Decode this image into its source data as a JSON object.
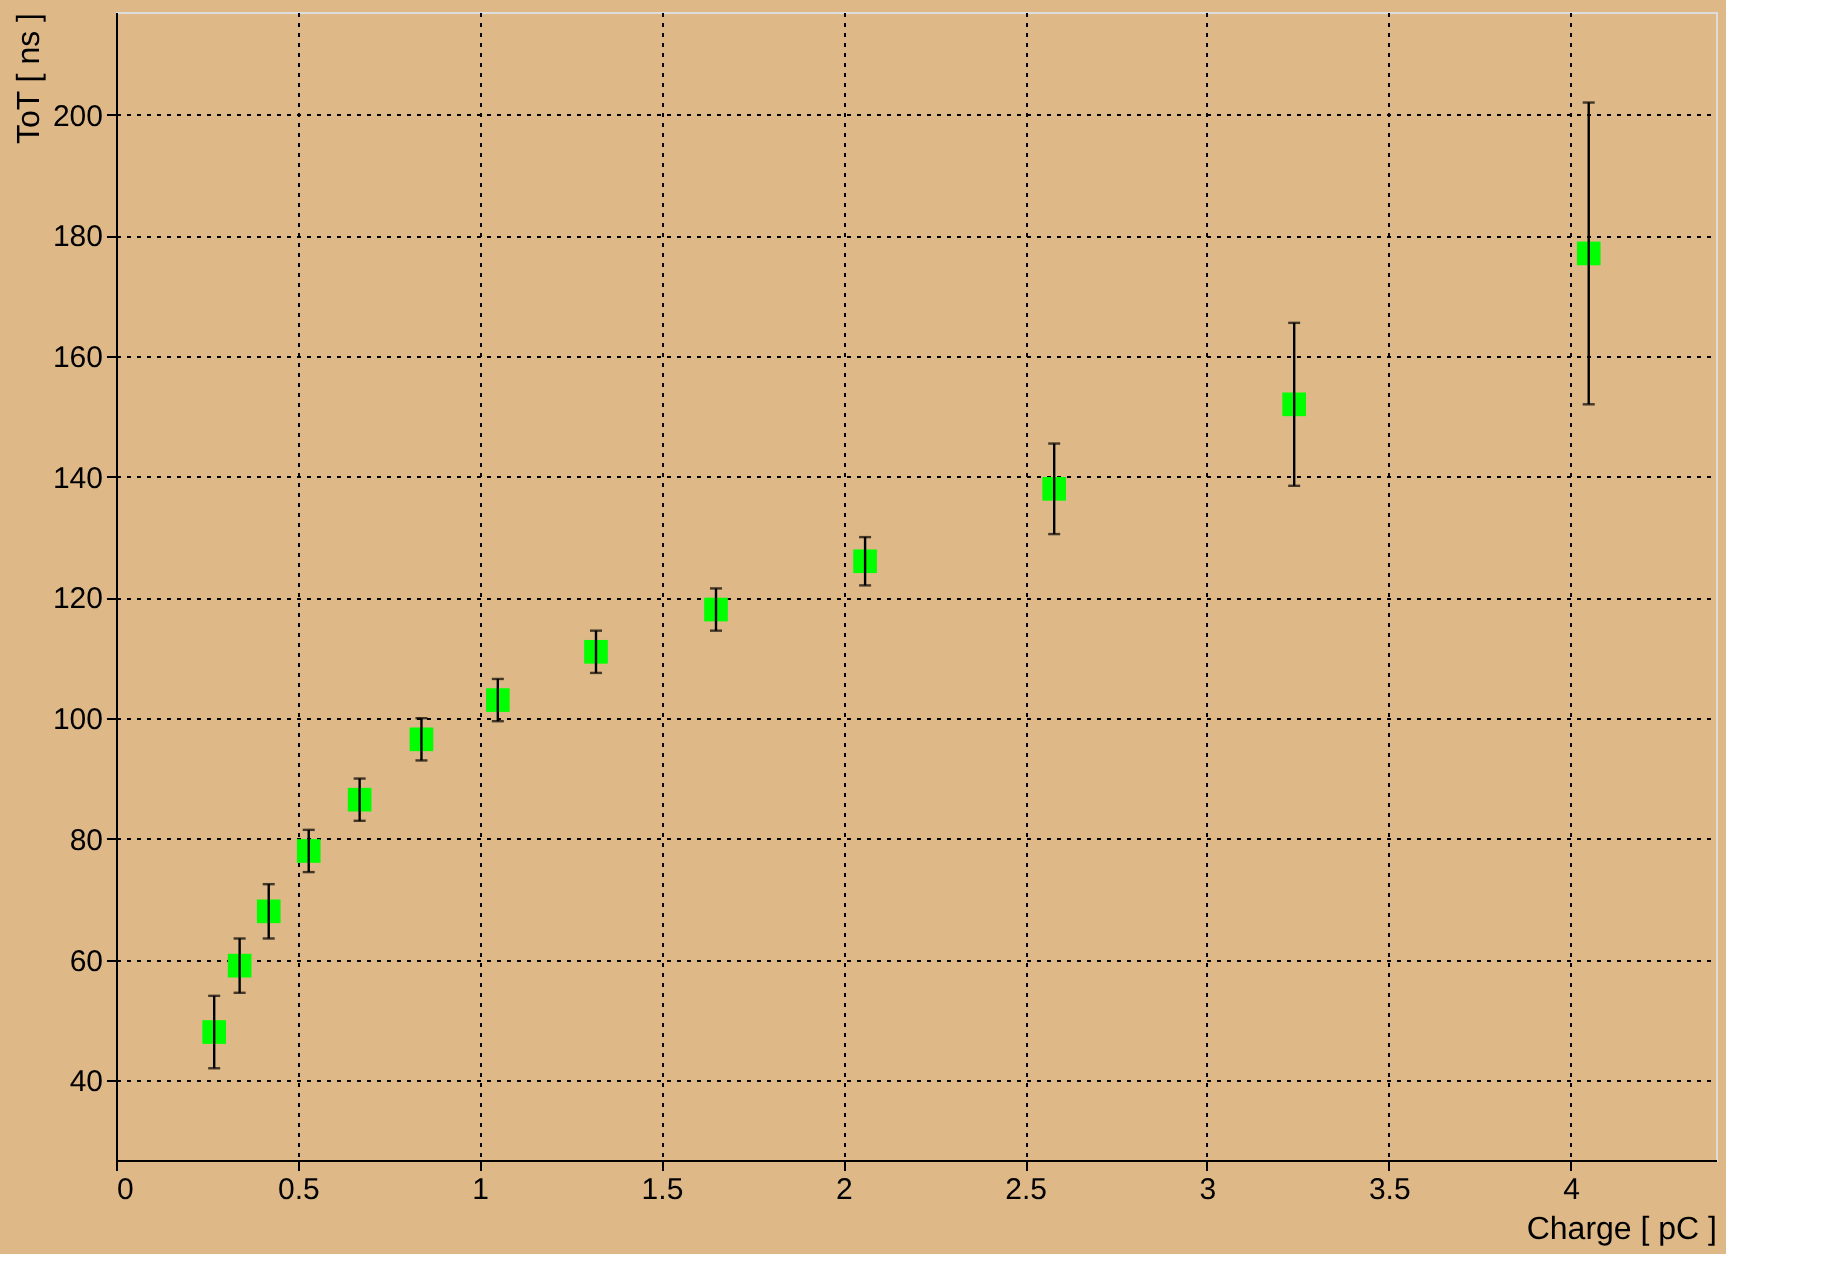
{
  "chart_data": {
    "type": "scatter",
    "xlabel": "Charge [ pC ]",
    "ylabel": "ToT [ ns ]",
    "x": [
      0.27,
      0.34,
      0.42,
      0.53,
      0.67,
      0.84,
      1.05,
      1.32,
      1.65,
      2.06,
      2.58,
      3.24,
      4.05
    ],
    "series": [
      {
        "color": "#00ff00",
        "values": [
          48,
          59,
          68,
          78,
          86.5,
          96.5,
          103,
          111,
          118,
          126,
          138,
          152,
          177
        ],
        "errors": [
          6,
          4.5,
          4.5,
          3.5,
          3.5,
          3.5,
          3.5,
          3.5,
          3.5,
          4,
          7.5,
          13.5,
          25
        ]
      }
    ],
    "marker": "square",
    "grid": true,
    "xlim": [
      0,
      4.4
    ],
    "xticks": [
      0,
      0.5,
      1,
      1.5,
      2,
      2.5,
      3,
      3.5,
      4
    ],
    "ylim": [
      26.8,
      217
    ],
    "yticks": [
      40,
      60,
      80,
      100,
      120,
      140,
      160,
      180,
      200
    ]
  }
}
